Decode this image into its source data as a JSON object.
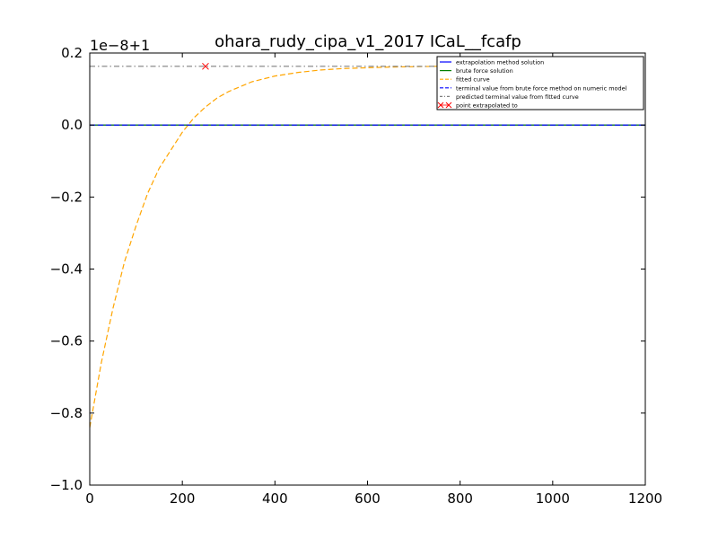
{
  "chart_data": {
    "type": "line",
    "title": "ohara_rudy_cipa_v1_2017 ICaL__fcafp",
    "xlabel": "",
    "ylabel": "",
    "offset_text": "1e−8+1",
    "xlim": [
      0,
      1200
    ],
    "ylim": [
      -1.0,
      0.2
    ],
    "x_ticks": [
      0,
      200,
      400,
      600,
      800,
      1000,
      1200
    ],
    "x_tick_labels": [
      "0",
      "200",
      "400",
      "600",
      "800",
      "1000",
      "1200"
    ],
    "y_ticks": [
      -1.0,
      -0.8,
      -0.6,
      -0.4,
      -0.2,
      0.0,
      0.2
    ],
    "y_tick_labels": [
      "−1.0",
      "−0.8",
      "−0.6",
      "−0.4",
      "−0.2",
      "0.0",
      "0.2"
    ],
    "grid": false,
    "legend_position": "top-right",
    "series": [
      {
        "name": "extrapolation method solution",
        "color": "#0000ff",
        "style": "solid",
        "x": [
          0,
          1200
        ],
        "y": [
          0.0,
          0.0
        ]
      },
      {
        "name": "brute force solution",
        "color": "#008000",
        "style": "solid",
        "x": [
          0,
          1200
        ],
        "y": [
          0.0,
          0.0
        ]
      },
      {
        "name": "fitted curve",
        "color": "#ffa500",
        "style": "dashed",
        "x": [
          0,
          25,
          50,
          75,
          100,
          125,
          150,
          175,
          200,
          225,
          250,
          275,
          300,
          350,
          400,
          450,
          500,
          550,
          600,
          650,
          700,
          750
        ],
        "y": [
          -0.84,
          -0.66,
          -0.51,
          -0.38,
          -0.28,
          -0.19,
          -0.12,
          -0.07,
          -0.02,
          0.02,
          0.05,
          0.075,
          0.093,
          0.12,
          0.136,
          0.146,
          0.153,
          0.157,
          0.159,
          0.161,
          0.162,
          0.163
        ]
      },
      {
        "name": "terminal value from brute force method on numeric model",
        "color": "#0000ff",
        "style": "dashed",
        "x": [
          0,
          1200
        ],
        "y": [
          0.0,
          0.0
        ]
      },
      {
        "name": "predicted terminal value from fitted curve",
        "color": "#808080",
        "style": "dashdot",
        "x": [
          0,
          750
        ],
        "y": [
          0.163,
          0.163
        ]
      },
      {
        "name": "point extrapolated to",
        "color": "#ff0000",
        "style": "marker-x",
        "x": [
          250
        ],
        "y": [
          0.163
        ]
      }
    ]
  }
}
